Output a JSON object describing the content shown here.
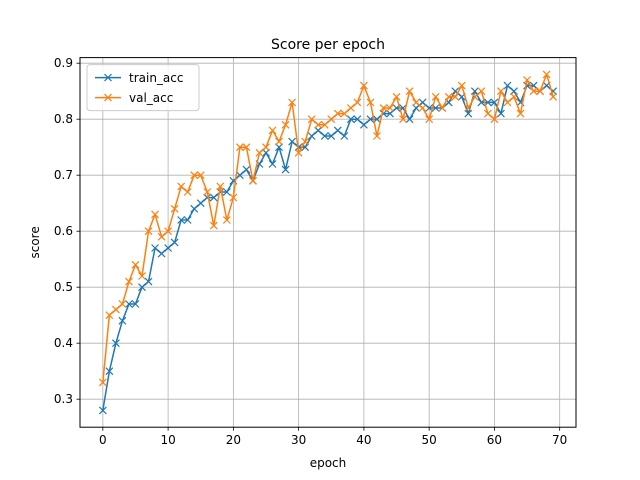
{
  "chart_data": {
    "type": "line",
    "title": "Score per epoch",
    "xlabel": "epoch",
    "ylabel": "score",
    "xlim": [
      -3.5,
      72.5
    ],
    "ylim": [
      0.25,
      0.91
    ],
    "xticks": [
      0,
      10,
      20,
      30,
      40,
      50,
      60,
      70
    ],
    "yticks": [
      0.3,
      0.4,
      0.5,
      0.6,
      0.7,
      0.8,
      0.9
    ],
    "grid": true,
    "legend_position": "top-left",
    "marker": "x",
    "x": [
      0,
      1,
      2,
      3,
      4,
      5,
      6,
      7,
      8,
      9,
      10,
      11,
      12,
      13,
      14,
      15,
      16,
      17,
      18,
      19,
      20,
      21,
      22,
      23,
      24,
      25,
      26,
      27,
      28,
      29,
      30,
      31,
      32,
      33,
      34,
      35,
      36,
      37,
      38,
      39,
      40,
      41,
      42,
      43,
      44,
      45,
      46,
      47,
      48,
      49,
      50,
      51,
      52,
      53,
      54,
      55,
      56,
      57,
      58,
      59,
      60,
      61,
      62,
      63,
      64,
      65,
      66,
      67,
      68,
      69
    ],
    "series": [
      {
        "name": "train_acc",
        "color": "#1f77b4",
        "values": [
          0.28,
          0.35,
          0.4,
          0.44,
          0.47,
          0.47,
          0.5,
          0.51,
          0.57,
          0.56,
          0.57,
          0.58,
          0.62,
          0.62,
          0.64,
          0.65,
          0.66,
          0.66,
          0.67,
          0.67,
          0.69,
          0.7,
          0.71,
          0.69,
          0.72,
          0.74,
          0.72,
          0.75,
          0.71,
          0.76,
          0.75,
          0.75,
          0.77,
          0.78,
          0.77,
          0.77,
          0.78,
          0.77,
          0.8,
          0.8,
          0.79,
          0.8,
          0.8,
          0.81,
          0.81,
          0.82,
          0.82,
          0.8,
          0.82,
          0.83,
          0.82,
          0.82,
          0.82,
          0.83,
          0.85,
          0.84,
          0.81,
          0.85,
          0.83,
          0.83,
          0.83,
          0.81,
          0.86,
          0.85,
          0.83,
          0.86,
          0.86,
          0.85,
          0.86,
          0.85
        ]
      },
      {
        "name": "val_acc",
        "color": "#ff7f0e",
        "values": [
          0.33,
          0.45,
          0.46,
          0.47,
          0.51,
          0.54,
          0.52,
          0.6,
          0.63,
          0.59,
          0.6,
          0.64,
          0.68,
          0.67,
          0.7,
          0.7,
          0.67,
          0.61,
          0.68,
          0.62,
          0.66,
          0.75,
          0.75,
          0.69,
          0.74,
          0.75,
          0.78,
          0.76,
          0.79,
          0.83,
          0.74,
          0.76,
          0.8,
          0.79,
          0.79,
          0.8,
          0.81,
          0.81,
          0.82,
          0.83,
          0.86,
          0.83,
          0.77,
          0.82,
          0.82,
          0.84,
          0.8,
          0.85,
          0.83,
          0.82,
          0.8,
          0.84,
          0.82,
          0.84,
          0.84,
          0.86,
          0.82,
          0.84,
          0.85,
          0.81,
          0.8,
          0.85,
          0.83,
          0.84,
          0.81,
          0.87,
          0.85,
          0.85,
          0.88,
          0.84
        ]
      }
    ]
  }
}
